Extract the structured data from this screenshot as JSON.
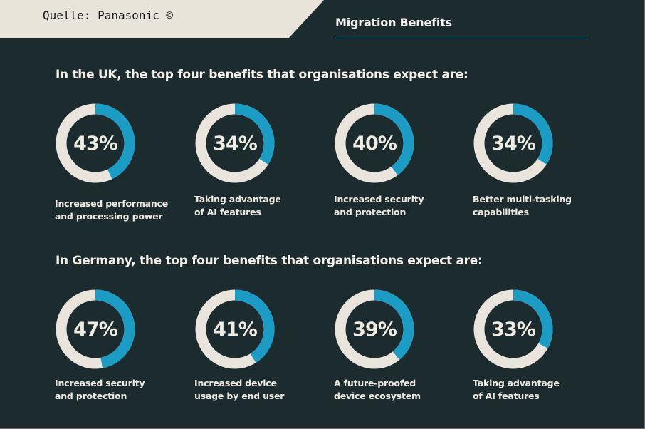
{
  "source_label": "Quelle: Panasonic ©",
  "header_title": "Migration Benefits",
  "colors": {
    "accent": "#1b9cc4",
    "ring_track": "#e9e5dc",
    "background": "#1c2b2d",
    "tab": "#e8e4da"
  },
  "chart_data": [
    {
      "type": "donut",
      "title": "In the UK, the top four benefits that organisations expect are:",
      "items": [
        {
          "value": 43,
          "label": "43%",
          "caption": [
            "Increased performance",
            "and processing power"
          ]
        },
        {
          "value": 34,
          "label": "34%",
          "caption": [
            "Taking advantage",
            "of AI features"
          ]
        },
        {
          "value": 40,
          "label": "40%",
          "caption": [
            "Increased security",
            "and protection"
          ]
        },
        {
          "value": 34,
          "label": "34%",
          "caption": [
            "Better multi-tasking",
            "capabilities"
          ]
        }
      ]
    },
    {
      "type": "donut",
      "title": "In Germany, the top four benefits that organisations expect are:",
      "items": [
        {
          "value": 47,
          "label": "47%",
          "caption": [
            "Increased security",
            "and protection"
          ]
        },
        {
          "value": 41,
          "label": "41%",
          "caption": [
            "Increased device",
            "usage by end user"
          ]
        },
        {
          "value": 39,
          "label": "39%",
          "caption": [
            "A future-proofed",
            "device ecosystem"
          ]
        },
        {
          "value": 33,
          "label": "33%",
          "caption": [
            "Taking advantage",
            "of AI features"
          ]
        }
      ]
    }
  ]
}
